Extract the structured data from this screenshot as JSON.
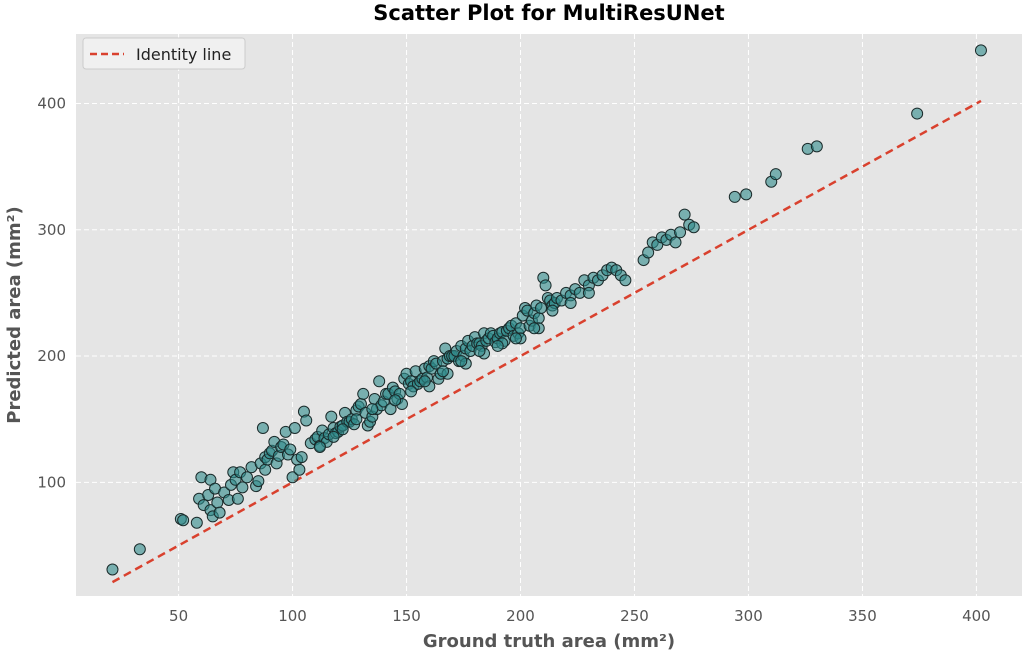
{
  "chart_data": {
    "type": "scatter",
    "title": "Scatter Plot for MultiResUNet",
    "xlabel": "Ground truth area (mm²)",
    "ylabel": "Predicted area (mm²)",
    "xlim": [
      5,
      420
    ],
    "ylim": [
      10,
      455
    ],
    "xticks": [
      50,
      100,
      150,
      200,
      250,
      300,
      350,
      400
    ],
    "yticks": [
      100,
      200,
      300,
      400
    ],
    "grid": true,
    "legend_position": "top-left",
    "colors": {
      "background": "#e5e5e5",
      "grid": "#ffffff",
      "point_fill": "#2e8b8b",
      "point_edge": "#1a2a2a",
      "identity_line": "#d9412e"
    },
    "series": [
      {
        "name": "Identity line",
        "kind": "line",
        "style": "dashed",
        "x": [
          21,
          402
        ],
        "y": [
          21,
          402
        ]
      },
      {
        "kind": "scatter",
        "x": [
          21,
          33,
          51,
          52,
          58,
          59,
          60,
          61,
          63,
          64,
          64,
          65,
          66,
          67,
          68,
          70,
          72,
          73,
          74,
          75,
          76,
          77,
          78,
          80,
          82,
          84,
          85,
          86,
          87,
          88,
          88,
          89,
          90,
          91,
          92,
          93,
          94,
          95,
          96,
          97,
          98,
          99,
          100,
          101,
          102,
          103,
          104,
          105,
          106,
          108,
          110,
          111,
          112,
          113,
          114,
          115,
          116,
          117,
          118,
          119,
          120,
          121,
          122,
          123,
          124,
          125,
          126,
          127,
          128,
          129,
          130,
          131,
          132,
          133,
          134,
          135,
          136,
          137,
          138,
          139,
          140,
          141,
          142,
          143,
          144,
          145,
          146,
          147,
          148,
          149,
          150,
          151,
          152,
          153,
          154,
          155,
          156,
          157,
          158,
          159,
          160,
          161,
          162,
          163,
          164,
          165,
          166,
          167,
          168,
          169,
          170,
          171,
          172,
          173,
          174,
          175,
          176,
          177,
          178,
          179,
          180,
          181,
          182,
          183,
          184,
          185,
          186,
          187,
          188,
          189,
          190,
          191,
          192,
          193,
          194,
          195,
          196,
          197,
          198,
          199,
          200,
          201,
          202,
          203,
          204,
          205,
          206,
          207,
          208,
          209,
          210,
          211,
          212,
          213,
          214,
          215,
          216,
          218,
          220,
          222,
          224,
          226,
          228,
          230,
          232,
          234,
          236,
          238,
          240,
          242,
          244,
          246,
          254,
          256,
          258,
          260,
          262,
          264,
          266,
          268,
          270,
          272,
          274,
          276,
          294,
          299,
          310,
          312,
          326,
          330,
          374,
          402,
          145,
          152,
          160,
          168,
          176,
          184,
          192,
          200,
          208,
          135,
          128,
          122,
          118,
          112,
          158,
          166,
          174,
          182,
          190,
          198,
          206,
          214,
          222,
          230
        ],
        "y": [
          31,
          47,
          71,
          70,
          68,
          87,
          104,
          82,
          90,
          78,
          102,
          73,
          95,
          84,
          76,
          92,
          86,
          98,
          108,
          102,
          87,
          108,
          96,
          104,
          112,
          97,
          101,
          115,
          143,
          110,
          120,
          118,
          123,
          125,
          132,
          115,
          121,
          128,
          130,
          140,
          122,
          126,
          104,
          143,
          118,
          110,
          120,
          156,
          149,
          131,
          134,
          136,
          129,
          141,
          135,
          132,
          138,
          152,
          143,
          139,
          140,
          144,
          145,
          155,
          148,
          148,
          150,
          146,
          157,
          160,
          162,
          170,
          155,
          145,
          148,
          152,
          166,
          158,
          180,
          161,
          164,
          170,
          170,
          158,
          175,
          172,
          166,
          170,
          162,
          182,
          186,
          178,
          180,
          176,
          188,
          178,
          180,
          182,
          190,
          183,
          192,
          190,
          196,
          194,
          182,
          186,
          196,
          206,
          198,
          200,
          200,
          200,
          204,
          196,
          208,
          200,
          206,
          212,
          204,
          208,
          215,
          210,
          210,
          208,
          218,
          212,
          214,
          218,
          216,
          211,
          214,
          218,
          219,
          212,
          220,
          222,
          224,
          216,
          226,
          218,
          222,
          232,
          238,
          236,
          224,
          228,
          234,
          240,
          230,
          238,
          262,
          256,
          246,
          244,
          240,
          242,
          246,
          244,
          250,
          248,
          253,
          250,
          260,
          256,
          262,
          260,
          264,
          268,
          270,
          268,
          264,
          260,
          276,
          282,
          290,
          288,
          294,
          292,
          296,
          290,
          298,
          312,
          304,
          302,
          326,
          328,
          338,
          344,
          364,
          366,
          392,
          442,
          165,
          172,
          176,
          186,
          194,
          202,
          210,
          214,
          222,
          158,
          150,
          142,
          136,
          128,
          180,
          188,
          196,
          204,
          208,
          214,
          222,
          236,
          242,
          250
        ]
      }
    ]
  }
}
